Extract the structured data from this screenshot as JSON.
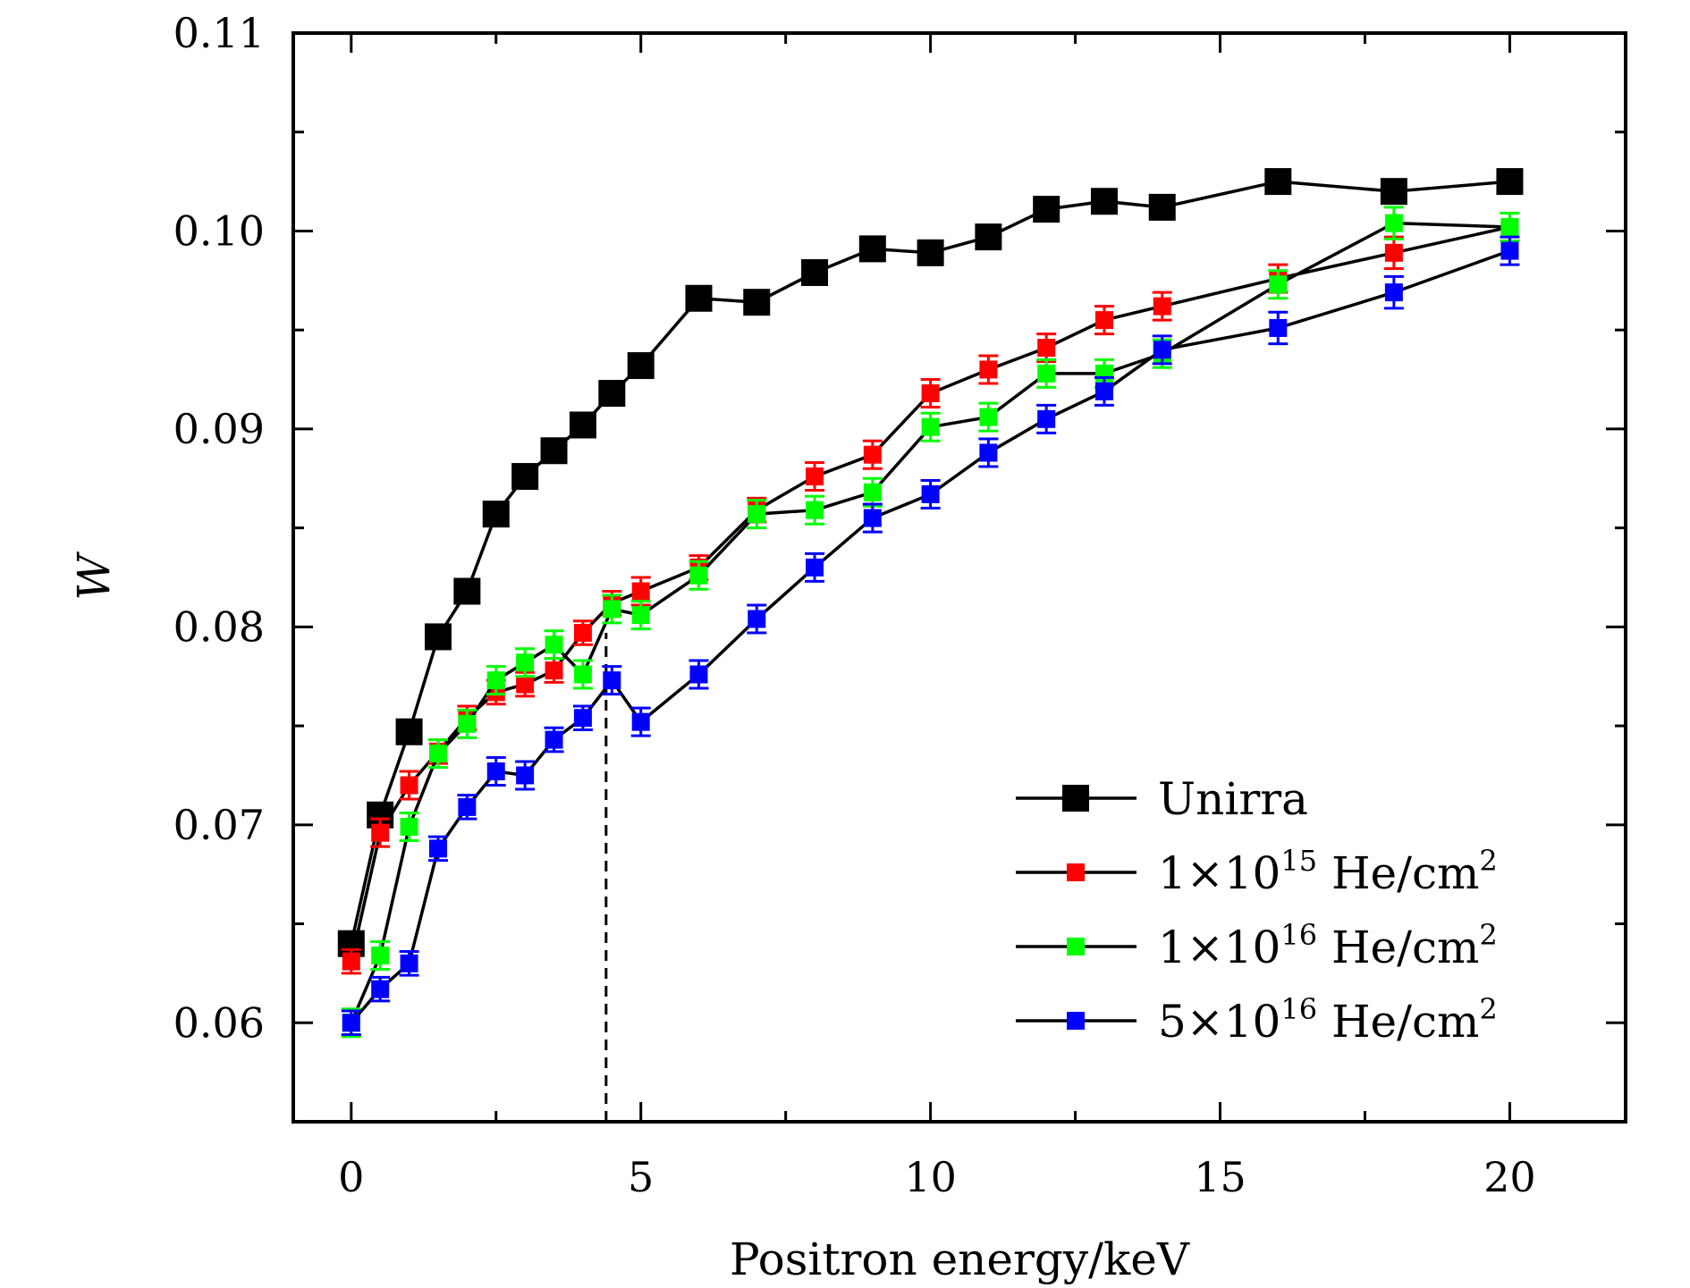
{
  "chart_data": {
    "type": "line",
    "xlabel": "Positron energy/keV",
    "ylabel": "W",
    "xlim": [
      -1,
      22
    ],
    "ylim": [
      0.055,
      0.11
    ],
    "xticks": [
      0,
      5,
      10,
      15,
      20
    ],
    "xtick_labels": [
      "0",
      "5",
      "10",
      "15",
      "20"
    ],
    "yticks": [
      0.06,
      0.07,
      0.08,
      0.09,
      0.1,
      0.11
    ],
    "ytick_labels": [
      "0.06",
      "0.07",
      "0.08",
      "0.09",
      "0.10",
      "0.11"
    ],
    "legend_position": "bottom-right",
    "grid": false,
    "reference_line": {
      "x": 4.4,
      "y_top": 0.0797,
      "style": "dashed"
    },
    "series": [
      {
        "name": "Unirra",
        "color": "#000000",
        "marker": "square-large",
        "x": [
          0,
          0.5,
          1,
          1.5,
          2,
          2.5,
          3,
          3.5,
          4,
          4.5,
          5,
          6,
          7,
          8,
          9,
          10,
          11,
          12,
          13,
          14,
          16,
          18,
          20
        ],
        "y": [
          0.064,
          0.0705,
          0.0747,
          0.0795,
          0.0818,
          0.0857,
          0.0876,
          0.0889,
          0.0902,
          0.0918,
          0.0932,
          0.0966,
          0.0964,
          0.0979,
          0.0991,
          0.0989,
          0.0997,
          0.1011,
          0.1015,
          0.1012,
          0.1025,
          0.102,
          0.1025
        ],
        "err": [
          0.0002,
          0.0002,
          0.0002,
          0.0002,
          0.0002,
          0.0002,
          0.0002,
          0.0002,
          0.0002,
          0.0002,
          0.0002,
          0.0002,
          0.0002,
          0.0002,
          0.0002,
          0.0002,
          0.0002,
          0.0002,
          0.0002,
          0.0002,
          0.0002,
          0.0002,
          0.0002
        ]
      },
      {
        "name_parts": [
          "1",
          "×10",
          "15",
          " He/cm",
          "2"
        ],
        "color": "#ff0000",
        "marker": "square",
        "x": [
          0,
          0.5,
          1,
          1.5,
          2,
          2.5,
          3,
          3.5,
          4,
          4.5,
          5,
          6,
          7,
          8,
          9,
          10,
          11,
          12,
          13,
          14,
          16,
          18,
          20
        ],
        "y": [
          0.0631,
          0.0696,
          0.072,
          0.0737,
          0.0754,
          0.0767,
          0.0771,
          0.0778,
          0.0797,
          0.0812,
          0.0818,
          0.083,
          0.0859,
          0.0876,
          0.0887,
          0.0918,
          0.093,
          0.0941,
          0.0955,
          0.0962,
          0.0976,
          0.0989,
          0.1002
        ],
        "err": [
          0.0006,
          0.0007,
          0.0007,
          0.0006,
          0.0006,
          0.0006,
          0.0006,
          0.0006,
          0.0006,
          0.0006,
          0.0007,
          0.0006,
          0.0006,
          0.0007,
          0.0007,
          0.0007,
          0.0007,
          0.0007,
          0.0007,
          0.0007,
          0.0007,
          0.0008,
          0.0007
        ]
      },
      {
        "name_parts": [
          "1",
          "×10",
          "16",
          " He/cm",
          "2"
        ],
        "color": "#00ff00",
        "marker": "square",
        "x": [
          0,
          0.5,
          1,
          1.5,
          2,
          2.5,
          3,
          3.5,
          4,
          4.5,
          5,
          6,
          7,
          8,
          9,
          10,
          11,
          12,
          13,
          14,
          16,
          18,
          20
        ],
        "y": [
          0.06,
          0.0634,
          0.0699,
          0.0736,
          0.0751,
          0.0773,
          0.0782,
          0.0791,
          0.0776,
          0.0809,
          0.0806,
          0.0826,
          0.0857,
          0.0859,
          0.0868,
          0.0901,
          0.0906,
          0.0928,
          0.0928,
          0.0938,
          0.0973,
          0.1004,
          0.1002
        ],
        "err": [
          0.0007,
          0.0007,
          0.0007,
          0.0007,
          0.0007,
          0.0007,
          0.0007,
          0.0007,
          0.0007,
          0.0007,
          0.0007,
          0.0007,
          0.0007,
          0.0007,
          0.0007,
          0.0007,
          0.0007,
          0.0007,
          0.0007,
          0.0007,
          0.0007,
          0.0008,
          0.0007
        ]
      },
      {
        "name_parts": [
          "5",
          "×10",
          "16",
          " He/cm",
          "2"
        ],
        "color": "#0000ff",
        "marker": "square",
        "x": [
          0,
          0.5,
          1,
          1.5,
          2,
          2.5,
          3,
          3.5,
          4,
          4.5,
          5,
          6,
          7,
          8,
          9,
          10,
          11,
          12,
          13,
          14,
          16,
          18,
          20
        ],
        "y": [
          0.06,
          0.0617,
          0.063,
          0.0688,
          0.0709,
          0.0727,
          0.0725,
          0.0743,
          0.0754,
          0.0773,
          0.0752,
          0.0776,
          0.0804,
          0.083,
          0.0855,
          0.0867,
          0.0888,
          0.0905,
          0.0919,
          0.094,
          0.0951,
          0.0969,
          0.099
        ],
        "err": [
          0.0006,
          0.0006,
          0.0006,
          0.0006,
          0.0006,
          0.0007,
          0.0007,
          0.0006,
          0.0006,
          0.0007,
          0.0007,
          0.0007,
          0.0007,
          0.0007,
          0.0007,
          0.0007,
          0.0007,
          0.0007,
          0.0007,
          0.0007,
          0.0008,
          0.0008,
          0.0007
        ]
      }
    ]
  }
}
